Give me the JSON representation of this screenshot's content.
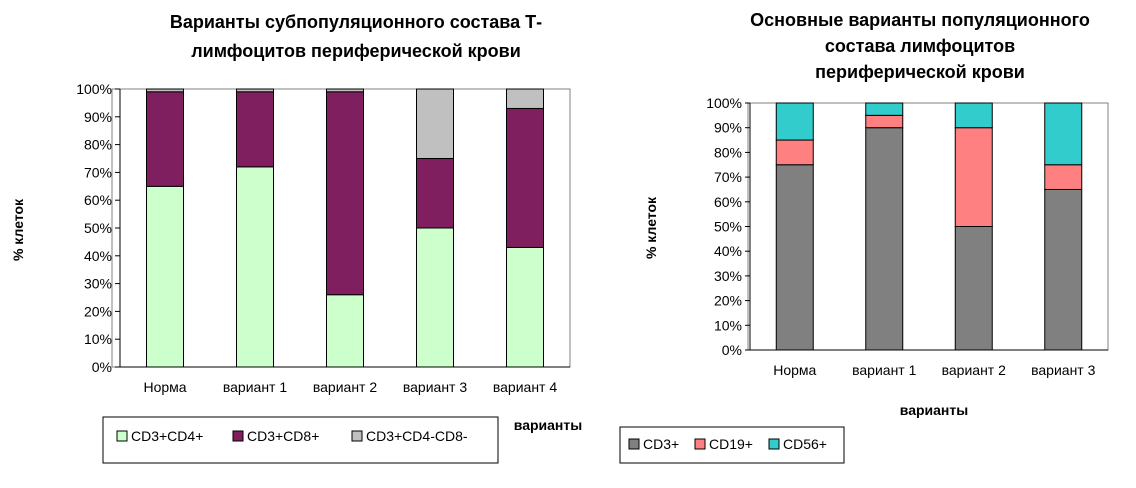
{
  "chart_data": [
    {
      "type": "bar",
      "stacked": true,
      "title_lines": [
        "Варианты субпопуляционного состава Т-",
        "лимфоцитов периферической крови"
      ],
      "ylabel": "% клеток",
      "xlabel": "варианты",
      "ylim": [
        0,
        100
      ],
      "y_ticks": [
        "0%",
        "10%",
        "20%",
        "30%",
        "40%",
        "50%",
        "60%",
        "70%",
        "80%",
        "90%",
        "100%"
      ],
      "categories": [
        "Норма",
        "вариант 1",
        "вариант 2",
        "вариант 3",
        "вариант 4"
      ],
      "series": [
        {
          "name": "CD3+CD4+",
          "values": [
            65,
            72,
            26,
            50,
            43
          ]
        },
        {
          "name": "CD3+CD8+",
          "values": [
            34,
            27,
            73,
            25,
            50
          ]
        },
        {
          "name": "CD3+CD4-CD8-",
          "values": [
            1,
            1,
            1,
            25,
            7
          ]
        }
      ],
      "colors": [
        "#ccffcc",
        "#7f1f5f",
        "#c0c0c0"
      ],
      "grid": false,
      "legend": "bottom"
    },
    {
      "type": "bar",
      "stacked": true,
      "title_lines": [
        "Основные варианты популяционного",
        "состава лимфоцитов",
        "периферической крови"
      ],
      "ylabel": "% клеток",
      "xlabel": "варианты",
      "ylim": [
        0,
        100
      ],
      "y_ticks": [
        "0%",
        "10%",
        "20%",
        "30%",
        "40%",
        "50%",
        "60%",
        "70%",
        "80%",
        "90%",
        "100%"
      ],
      "categories": [
        "Норма",
        "вариант 1",
        "вариант 2",
        "вариант 3"
      ],
      "series": [
        {
          "name": "CD3+",
          "values": [
            75,
            90,
            50,
            65
          ]
        },
        {
          "name": "CD19+",
          "values": [
            10,
            5,
            40,
            10
          ]
        },
        {
          "name": "CD56+",
          "values": [
            15,
            5,
            10,
            25
          ]
        }
      ],
      "colors": [
        "#808080",
        "#ff8080",
        "#33cccc"
      ],
      "grid": false,
      "legend": "bottom"
    }
  ]
}
